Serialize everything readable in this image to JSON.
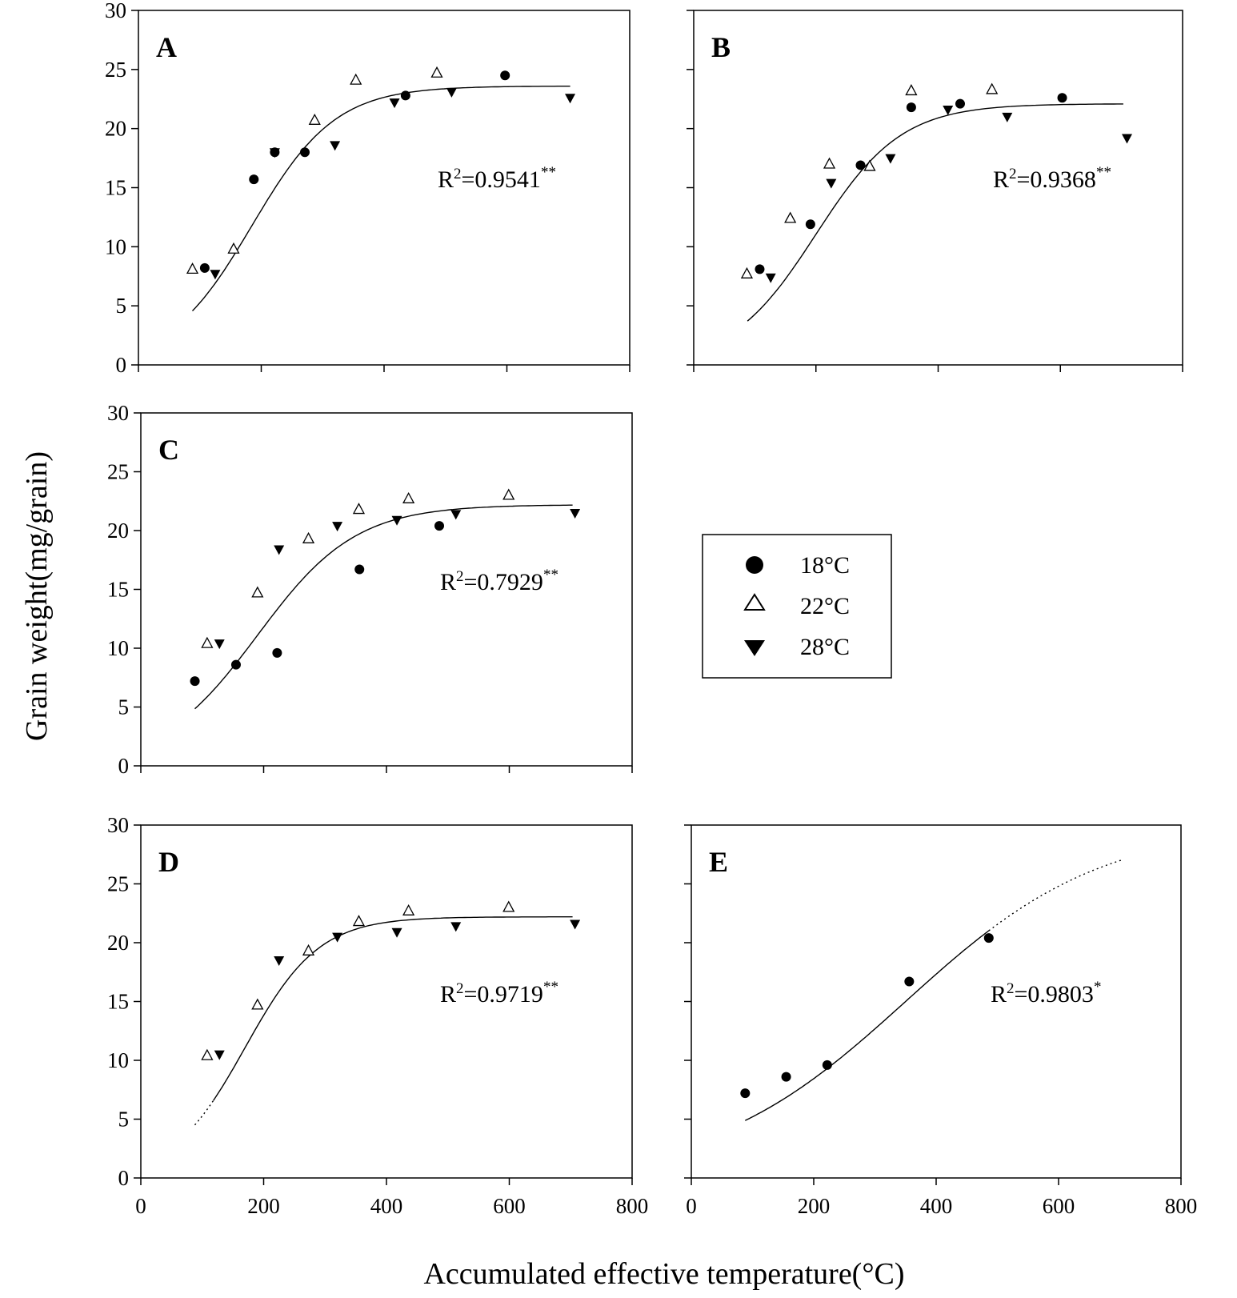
{
  "figure": {
    "ylabel": "Grain weight(mg/grain)",
    "xlabel": "Accumulated effective temperature(°C)"
  },
  "legend": {
    "entries": [
      {
        "label": "18°C",
        "marker": "circle-filled"
      },
      {
        "label": "22°C",
        "marker": "triangle-up-open"
      },
      {
        "label": "28°C",
        "marker": "triangle-down-filled"
      }
    ]
  },
  "chart_data": [
    {
      "type": "scatter",
      "panel": "A",
      "r2": {
        "value": "R",
        "sup1": "2",
        "main": "=0.9541",
        "sup2": "**"
      },
      "xlim": [
        0,
        800
      ],
      "ylim": [
        0,
        30
      ],
      "xticks": [
        0,
        200,
        400,
        600,
        800
      ],
      "yticks": [
        0,
        5,
        10,
        15,
        20,
        25,
        30
      ],
      "show_xtick_labels": false,
      "show_ytick_labels": true,
      "series": [
        {
          "name": "18°C",
          "points": [
            [
              108,
              8.2
            ],
            [
              188,
              15.7
            ],
            [
              222,
              18.0
            ],
            [
              271,
              18.0
            ],
            [
              435,
              22.8
            ],
            [
              597,
              24.5
            ]
          ]
        },
        {
          "name": "22°C",
          "points": [
            [
              88,
              8.1
            ],
            [
              155,
              9.8
            ],
            [
              287,
              20.7
            ],
            [
              354,
              24.1
            ],
            [
              486,
              24.7
            ]
          ]
        },
        {
          "name": "28°C",
          "points": [
            [
              125,
              7.7
            ],
            [
              222,
              18.0
            ],
            [
              320,
              18.6
            ],
            [
              417,
              22.2
            ],
            [
              510,
              23.1
            ],
            [
              703,
              22.6
            ]
          ]
        }
      ],
      "fit": {
        "a": 23.6,
        "b": 185,
        "c": 68,
        "x_range": [
          88,
          703
        ]
      }
    },
    {
      "type": "scatter",
      "panel": "B",
      "r2": {
        "value": "R",
        "sup1": "2",
        "main": "=0.9368",
        "sup2": "**"
      },
      "xlim": [
        0,
        800
      ],
      "ylim": [
        0,
        30
      ],
      "xticks": [
        0,
        200,
        400,
        600,
        800
      ],
      "yticks": [
        0,
        5,
        10,
        15,
        20,
        25,
        30
      ],
      "show_xtick_labels": false,
      "show_ytick_labels": false,
      "series": [
        {
          "name": "18°C",
          "points": [
            [
              108,
              8.1
            ],
            [
              191,
              11.9
            ],
            [
              273,
              16.9
            ],
            [
              356,
              21.8
            ],
            [
              436,
              22.1
            ],
            [
              603,
              22.6
            ]
          ]
        },
        {
          "name": "22°C",
          "points": [
            [
              87,
              7.7
            ],
            [
              158,
              12.4
            ],
            [
              222,
              17.0
            ],
            [
              288,
              16.8
            ],
            [
              356,
              23.2
            ],
            [
              488,
              23.3
            ]
          ]
        },
        {
          "name": "28°C",
          "points": [
            [
              126,
              7.4
            ],
            [
              225,
              15.4
            ],
            [
              322,
              17.5
            ],
            [
              416,
              21.6
            ],
            [
              513,
              21.0
            ],
            [
              709,
              19.2
            ]
          ]
        }
      ],
      "fit": {
        "a": 22.1,
        "b": 200,
        "c": 70,
        "x_range": [
          88,
          703
        ]
      }
    },
    {
      "type": "scatter",
      "panel": "C",
      "r2": {
        "value": "R",
        "sup1": "2",
        "main": "=0.7929",
        "sup2": "**"
      },
      "xlim": [
        0,
        800
      ],
      "ylim": [
        0,
        30
      ],
      "xticks": [
        0,
        200,
        400,
        600,
        800
      ],
      "yticks": [
        0,
        5,
        10,
        15,
        20,
        25,
        30
      ],
      "show_xtick_labels": false,
      "show_ytick_labels": true,
      "series": [
        {
          "name": "18°C",
          "points": [
            [
              88,
              7.2
            ],
            [
              155,
              8.6
            ],
            [
              222,
              9.6
            ],
            [
              356,
              16.7
            ],
            [
              486,
              20.4
            ]
          ]
        },
        {
          "name": "22°C",
          "points": [
            [
              108,
              10.4
            ],
            [
              190,
              14.7
            ],
            [
              273,
              19.3
            ],
            [
              355,
              21.8
            ],
            [
              436,
              22.7
            ],
            [
              599,
              23.0
            ]
          ]
        },
        {
          "name": "28°C",
          "points": [
            [
              128,
              10.4
            ],
            [
              225,
              18.4
            ],
            [
              320,
              20.4
            ],
            [
              417,
              20.9
            ],
            [
              513,
              21.4
            ],
            [
              707,
              21.5
            ]
          ]
        }
      ],
      "fit": {
        "a": 22.2,
        "b": 190,
        "c": 80,
        "x_range": [
          88,
          703
        ]
      }
    },
    {
      "type": "scatter",
      "panel": "D",
      "r2": {
        "value": "R",
        "sup1": "2",
        "main": "=0.9719",
        "sup2": "**"
      },
      "xlim": [
        0,
        800
      ],
      "ylim": [
        0,
        30
      ],
      "xticks": [
        0,
        200,
        400,
        600,
        800
      ],
      "yticks": [
        0,
        5,
        10,
        15,
        20,
        25,
        30
      ],
      "show_xtick_labels": true,
      "show_ytick_labels": true,
      "series": [
        {
          "name": "22°C",
          "points": [
            [
              108,
              10.4
            ],
            [
              190,
              14.7
            ],
            [
              273,
              19.3
            ],
            [
              355,
              21.8
            ],
            [
              436,
              22.7
            ],
            [
              599,
              23.0
            ]
          ]
        },
        {
          "name": "28°C",
          "points": [
            [
              128,
              10.5
            ],
            [
              225,
              18.5
            ],
            [
              320,
              20.5
            ],
            [
              417,
              20.9
            ],
            [
              513,
              21.4
            ],
            [
              707,
              21.6
            ]
          ]
        }
      ],
      "fit": {
        "a": 22.2,
        "b": 170,
        "c": 60,
        "x_range": [
          118,
          703
        ],
        "dotted_x_range": [
          88,
          118
        ]
      }
    },
    {
      "type": "scatter",
      "panel": "E",
      "r2": {
        "value": "R",
        "sup1": "2",
        "main": "=0.9803",
        "sup2": "*"
      },
      "xlim": [
        0,
        800
      ],
      "ylim": [
        0,
        30
      ],
      "xticks": [
        0,
        200,
        400,
        600,
        800
      ],
      "yticks": [
        0,
        5,
        10,
        15,
        20,
        25,
        30
      ],
      "show_xtick_labels": true,
      "show_ytick_labels": false,
      "series": [
        {
          "name": "18°C",
          "points": [
            [
              88,
              7.2
            ],
            [
              155,
              8.6
            ],
            [
              222,
              9.6
            ],
            [
              356,
              16.7
            ],
            [
              486,
              20.4
            ]
          ]
        }
      ],
      "fit": {
        "a": 30.0,
        "b": 350,
        "c": 160,
        "x_range": [
          88,
          486
        ],
        "dotted_x_range": [
          486,
          705
        ]
      }
    }
  ]
}
